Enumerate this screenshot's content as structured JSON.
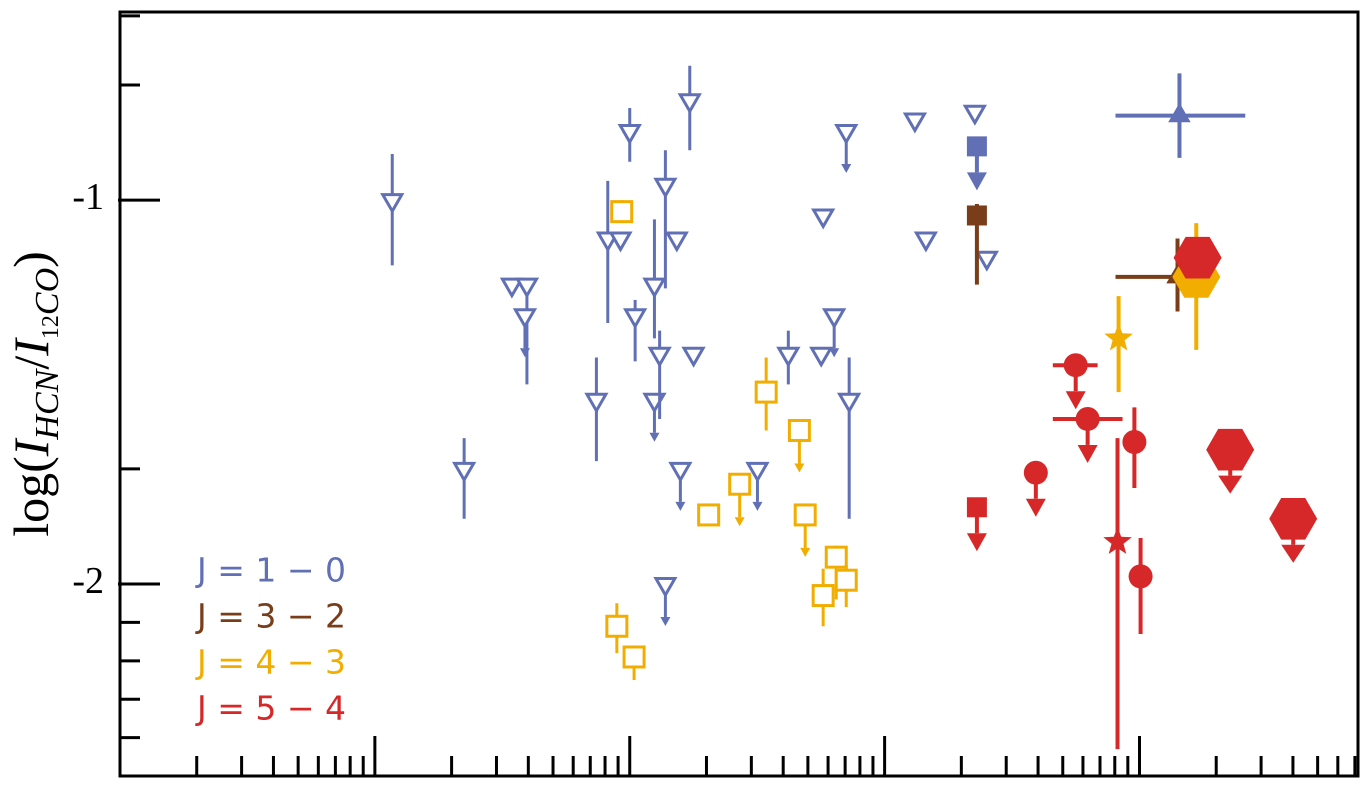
{
  "chart_data": {
    "type": "scatter",
    "ylabel": [
      "log(",
      "I",
      "HCN",
      "/",
      "I",
      "12",
      "CO",
      ")"
    ],
    "xscale": "log",
    "xlim": [
      1,
      72000
    ],
    "xticks": [
      10,
      100,
      1000,
      10000
    ],
    "xminor": [
      2,
      3,
      4,
      5,
      6,
      7,
      8,
      9,
      20,
      30,
      40,
      50,
      60,
      70,
      80,
      90,
      200,
      300,
      400,
      500,
      600,
      700,
      800,
      900,
      2000,
      3000,
      4000,
      5000,
      6000,
      7000,
      8000,
      9000,
      20000,
      30000,
      40000,
      50000,
      60000,
      70000
    ],
    "ylim": [
      -2.5,
      -0.51
    ],
    "yticks": [
      -1,
      -2
    ],
    "yminor": [
      -0.52,
      -0.7,
      -1.7,
      -2.1,
      -2.2,
      -2.3,
      -2.4
    ],
    "legend": "lower left",
    "series": [
      {
        "name": "J = 1 − 0",
        "color": "#6170b5",
        "points": [
          {
            "marker": "tri-down",
            "filled": false,
            "x": 11.7,
            "y": -1.0,
            "ylo": -1.17,
            "yhi": -0.88
          },
          {
            "marker": "tri-down",
            "filled": false,
            "x": 22.4,
            "y": -1.7,
            "ylo": -1.83,
            "yhi": -1.62
          },
          {
            "marker": "tri-down",
            "filled": false,
            "x": 34.5,
            "y": -1.22
          },
          {
            "marker": "tri-down",
            "filled": false,
            "x": 39.5,
            "y": -1.22,
            "ylo": -1.48,
            "yhi": -1.21
          },
          {
            "marker": "tri-down",
            "filled": false,
            "x": 38.8,
            "y": -1.3,
            "limit": true
          },
          {
            "marker": "tri-down",
            "filled": false,
            "x": 74,
            "y": -1.52,
            "ylo": -1.68,
            "yhi": -1.41
          },
          {
            "marker": "tri-down",
            "filled": false,
            "x": 82,
            "y": -1.1,
            "ylo": -1.32,
            "yhi": -0.95
          },
          {
            "marker": "tri-down",
            "filled": false,
            "x": 92,
            "y": -1.1
          },
          {
            "marker": "tri-down",
            "filled": false,
            "x": 100,
            "y": -0.82,
            "ylo": -0.9,
            "yhi": -0.76
          },
          {
            "marker": "tri-down",
            "filled": false,
            "x": 105,
            "y": -1.3,
            "ylo": -1.42,
            "yhi": -1.26
          },
          {
            "marker": "tri-down",
            "filled": false,
            "x": 125,
            "y": -1.22,
            "ylo": -1.36,
            "yhi": -1.05
          },
          {
            "marker": "tri-down",
            "filled": false,
            "x": 125,
            "y": -1.52,
            "limit": true
          },
          {
            "marker": "tri-down",
            "filled": false,
            "x": 131,
            "y": -1.4,
            "ylo": -1.57,
            "yhi": -1.34
          },
          {
            "marker": "tri-down",
            "filled": false,
            "x": 138,
            "y": -0.96,
            "ylo": -1.23,
            "yhi": -0.87
          },
          {
            "marker": "tri-down",
            "filled": false,
            "x": 153,
            "y": -1.1
          },
          {
            "marker": "tri-down",
            "filled": false,
            "x": 172,
            "y": -0.74,
            "ylo": -0.87,
            "yhi": -0.65
          },
          {
            "marker": "tri-down",
            "filled": false,
            "x": 178,
            "y": -1.4
          },
          {
            "marker": "tri-down",
            "filled": false,
            "x": 158,
            "y": -1.7,
            "limit": true
          },
          {
            "marker": "tri-down",
            "filled": false,
            "x": 138,
            "y": -2.0,
            "limit": true
          },
          {
            "marker": "tri-down",
            "filled": false,
            "x": 317,
            "y": -1.7,
            "limit": true
          },
          {
            "marker": "tri-down",
            "filled": false,
            "x": 419,
            "y": -1.4,
            "ylo": -1.48,
            "yhi": -1.34
          },
          {
            "marker": "tri-down",
            "filled": false,
            "x": 564,
            "y": -1.4
          },
          {
            "marker": "tri-down",
            "filled": false,
            "x": 634,
            "y": -1.3,
            "limit": true
          },
          {
            "marker": "tri-down",
            "filled": false,
            "x": 707,
            "y": -0.82,
            "limit": true
          },
          {
            "marker": "tri-down",
            "filled": false,
            "x": 726,
            "y": -1.52,
            "ylo": -1.83,
            "yhi": -1.41
          },
          {
            "marker": "tri-down",
            "filled": false,
            "x": 574,
            "y": -1.04
          },
          {
            "marker": "tri-down",
            "filled": false,
            "x": 1315,
            "y": -0.79
          },
          {
            "marker": "tri-down",
            "filled": false,
            "x": 1452,
            "y": -1.1
          },
          {
            "marker": "tri-down",
            "filled": false,
            "x": 2260,
            "y": -0.77
          },
          {
            "marker": "tri-down",
            "filled": false,
            "x": 2518,
            "y": -1.15
          },
          {
            "marker": "square",
            "filled": true,
            "x": 2302,
            "y": -0.86,
            "limit": true
          },
          {
            "marker": "tri-up",
            "filled": true,
            "x": 14350,
            "y": -0.78,
            "xlo": 8050,
            "xhi": 26000,
            "ylo": -0.89,
            "yhi": -0.67
          }
        ]
      },
      {
        "name": "J = 3 − 2",
        "color": "#7a3d1a",
        "points": [
          {
            "marker": "square",
            "filled": true,
            "x": 2302,
            "y": -1.04,
            "ylo": -1.22,
            "yhi": -1.01
          },
          {
            "marker": "tri-up",
            "filled": true,
            "x": 14100,
            "y": -1.2,
            "xlo": 8050,
            "xhi": 14100,
            "ylo": -1.29,
            "yhi": -1.1
          }
        ]
      },
      {
        "name": "J = 4 − 3",
        "color": "#f2ae00",
        "points": [
          {
            "marker": "square",
            "filled": false,
            "x": 93,
            "y": -1.03,
            "ylo": -1.06,
            "yhi": -1.0
          },
          {
            "marker": "square",
            "filled": false,
            "x": 343,
            "y": -1.5,
            "ylo": -1.6,
            "yhi": -1.41
          },
          {
            "marker": "square",
            "filled": false,
            "x": 463,
            "y": -1.6,
            "limit": true
          },
          {
            "marker": "square",
            "filled": false,
            "x": 270,
            "y": -1.74,
            "limit": true
          },
          {
            "marker": "square",
            "filled": false,
            "x": 204,
            "y": -1.82
          },
          {
            "marker": "square",
            "filled": false,
            "x": 488,
            "y": -1.82,
            "limit": true
          },
          {
            "marker": "square",
            "filled": false,
            "x": 89,
            "y": -2.11,
            "ylo": -2.18,
            "yhi": -2.05
          },
          {
            "marker": "square",
            "filled": false,
            "x": 104,
            "y": -2.19,
            "ylo": -2.25,
            "yhi": -2.16
          },
          {
            "marker": "square",
            "filled": false,
            "x": 646,
            "y": -1.93,
            "ylo": -2.04,
            "yhi": -1.9
          },
          {
            "marker": "square",
            "filled": false,
            "x": 574,
            "y": -2.03,
            "ylo": -2.11,
            "yhi": -1.96
          },
          {
            "marker": "square",
            "filled": false,
            "x": 707,
            "y": -1.99,
            "ylo": -2.06,
            "yhi": -1.95
          },
          {
            "marker": "star",
            "filled": true,
            "x": 8280,
            "y": -1.36,
            "ylo": -1.5,
            "yhi": -1.25
          },
          {
            "marker": "hexagon",
            "filled": true,
            "x": 16700,
            "y": -1.2,
            "ylo": -1.39,
            "yhi": -1.06
          }
        ]
      },
      {
        "name": "J = 5 − 4",
        "color": "#d62828",
        "points": [
          {
            "marker": "square",
            "filled": true,
            "x": 2302,
            "y": -1.8,
            "limit": true
          },
          {
            "marker": "circle",
            "filled": true,
            "x": 5620,
            "y": -1.43,
            "xlo": 4570,
            "xhi": 6850,
            "limit": true
          },
          {
            "marker": "circle",
            "filled": true,
            "x": 6260,
            "y": -1.57,
            "xlo": 4570,
            "xhi": 8580,
            "limit": true
          },
          {
            "marker": "circle",
            "filled": true,
            "x": 3920,
            "y": -1.71,
            "limit": true
          },
          {
            "marker": "circle",
            "filled": true,
            "x": 9550,
            "y": -1.63,
            "ylo": -1.75,
            "yhi": -1.54
          },
          {
            "marker": "circle",
            "filled": true,
            "x": 10100,
            "y": -1.98,
            "ylo": -2.13,
            "yhi": -1.88
          },
          {
            "marker": "star",
            "filled": true,
            "x": 8200,
            "y": -1.89,
            "ylo": -2.43,
            "yhi": -1.62
          },
          {
            "marker": "hexagon",
            "filled": true,
            "x": 16900,
            "y": -1.15
          },
          {
            "marker": "hexagon",
            "filled": true,
            "x": 22700,
            "y": -1.65,
            "limit": true
          },
          {
            "marker": "hexagon",
            "filled": true,
            "x": 40100,
            "y": -1.83,
            "limit": true
          }
        ]
      }
    ]
  }
}
